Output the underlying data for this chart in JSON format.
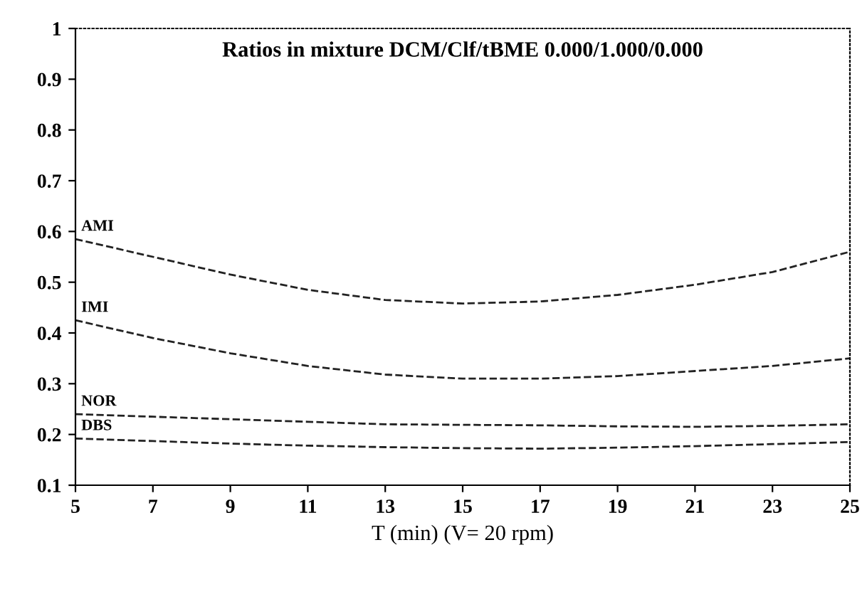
{
  "chart_data": {
    "type": "line",
    "title": "Ratios in mixture DCM/Clf/tBME 0.000/1.000/0.000",
    "xlabel": "T (min) (V= 20 rpm)",
    "x": [
      5,
      7,
      9,
      11,
      13,
      15,
      17,
      19,
      21,
      23,
      25
    ],
    "series": [
      {
        "name": "AMI",
        "color": "#222222",
        "values": [
          0.585,
          0.55,
          0.515,
          0.485,
          0.465,
          0.458,
          0.462,
          0.475,
          0.495,
          0.52,
          0.56
        ]
      },
      {
        "name": "IMI",
        "color": "#222222",
        "values": [
          0.425,
          0.39,
          0.36,
          0.335,
          0.318,
          0.31,
          0.31,
          0.315,
          0.325,
          0.335,
          0.35
        ]
      },
      {
        "name": "NOR",
        "color": "#222222",
        "values": [
          0.24,
          0.235,
          0.23,
          0.225,
          0.22,
          0.219,
          0.218,
          0.216,
          0.215,
          0.217,
          0.22
        ]
      },
      {
        "name": "DBS",
        "color": "#222222",
        "values": [
          0.192,
          0.187,
          0.182,
          0.178,
          0.175,
          0.173,
          0.172,
          0.174,
          0.177,
          0.181,
          0.185
        ]
      }
    ],
    "xlim": [
      5,
      25
    ],
    "xticks": [
      5,
      7,
      9,
      11,
      13,
      15,
      17,
      19,
      21,
      23,
      25
    ],
    "ylim": [
      0.1,
      1
    ],
    "yticks": [
      0.1,
      0.2,
      0.3,
      0.4,
      0.5,
      0.6,
      0.7,
      0.8,
      0.9,
      1
    ],
    "grid": false,
    "legend": false,
    "line_style": "dashed",
    "marker": "none"
  }
}
